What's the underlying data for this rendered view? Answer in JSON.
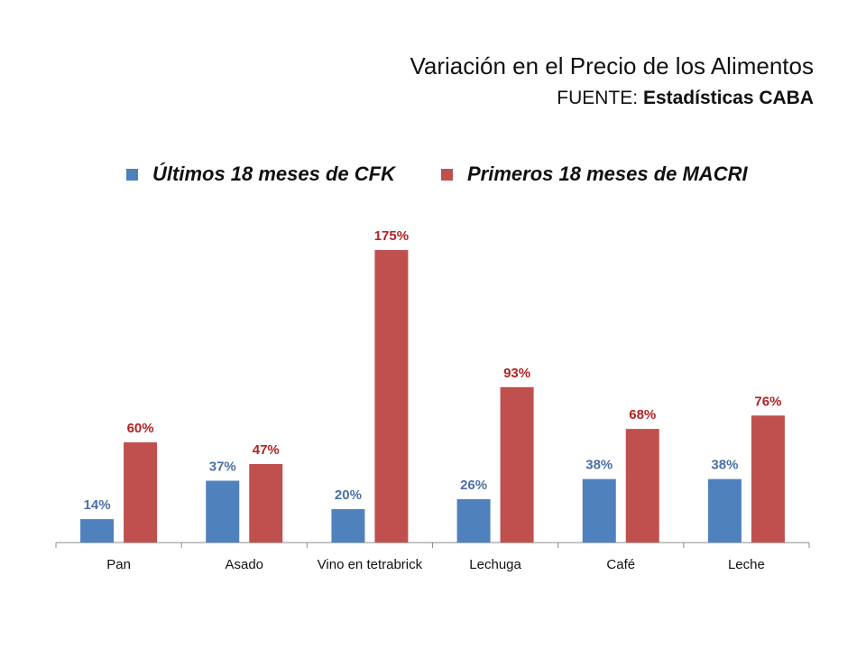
{
  "header": {
    "title": "Variación en el Precio de los Alimentos",
    "source_prefix": "FUENTE: ",
    "source_name": "Estadísticas CABA"
  },
  "chart_data": {
    "type": "bar",
    "title": "Variación en el Precio de los Alimentos",
    "categories": [
      "Pan",
      "Asado",
      "Vino en tetrabrick",
      "Lechuga",
      "Café",
      "Leche"
    ],
    "series": [
      {
        "name": "Últimos 18 meses de CFK",
        "values": [
          14,
          37,
          20,
          26,
          38,
          38
        ],
        "labels": [
          "14%",
          "37%",
          "20%",
          "26%",
          "38%",
          "38%"
        ],
        "color": "#4f81bd",
        "label_color": "#4a6fa5"
      },
      {
        "name": "Primeros 18 meses de MACRI",
        "values": [
          60,
          47,
          175,
          93,
          68,
          76
        ],
        "labels": [
          "60%",
          "47%",
          "175%",
          "93%",
          "68%",
          "76%"
        ],
        "color": "#c0504d",
        "label_color": "#b22222"
      }
    ],
    "xlabel": "",
    "ylabel": "",
    "ylim": [
      0,
      175
    ],
    "grid": false,
    "legend": "top-center"
  }
}
